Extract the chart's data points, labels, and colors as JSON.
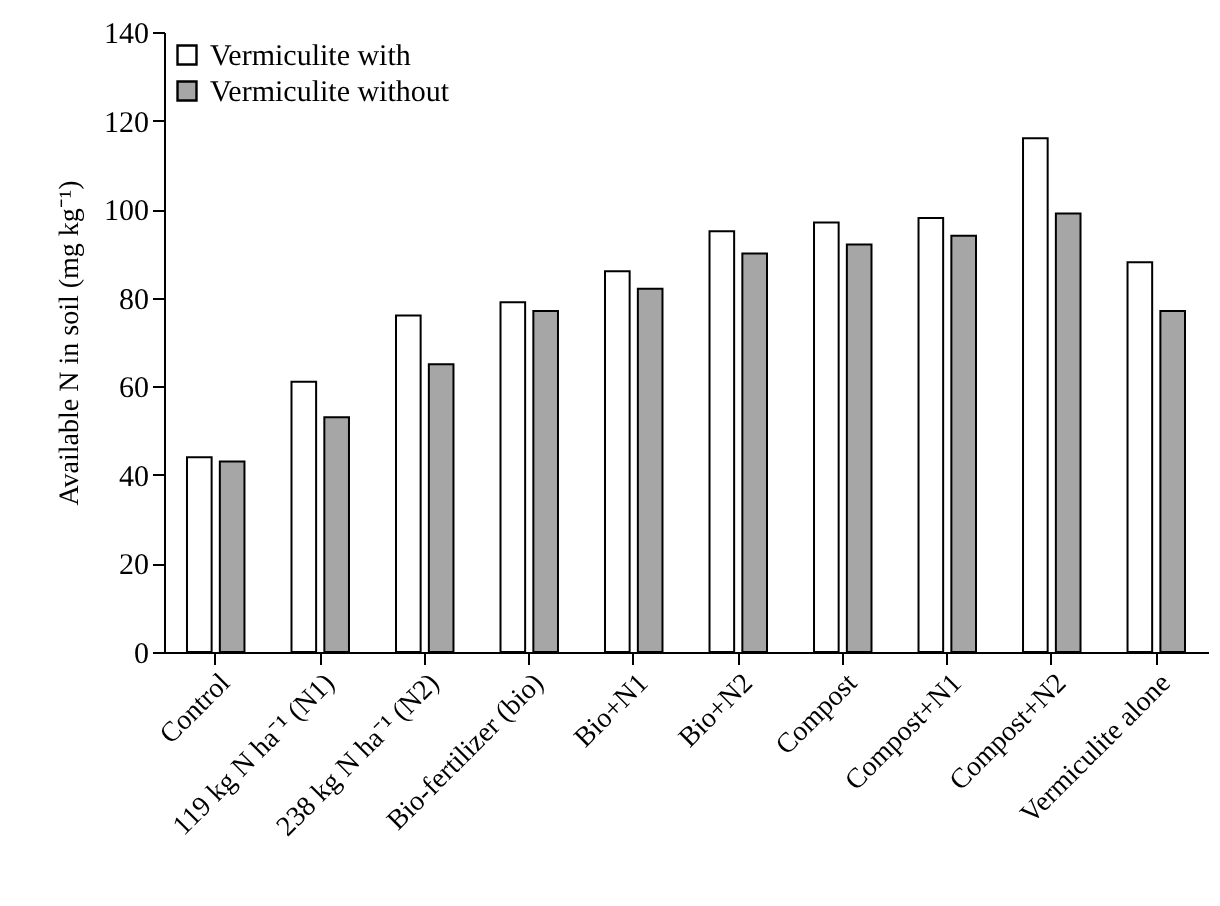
{
  "chart_data": {
    "type": "bar",
    "ylabel": "Available N in soil (mg kg⁻¹)",
    "categories": [
      "Control",
      "119 kg N ha⁻¹ (N1)",
      "238 kg N ha⁻¹ (N2)",
      "Bio-fertilizer (bio)",
      "Bio+N1",
      "Bio+N2",
      "Compost",
      "Compost+N1",
      "Compost+N2",
      "Vermiculite alone"
    ],
    "series": [
      {
        "name": "Vermiculite with",
        "color": "#ffffff",
        "values": [
          44,
          61,
          76,
          79,
          86,
          95,
          97,
          98,
          116,
          88
        ]
      },
      {
        "name": "Vermiculite without",
        "color": "#a6a6a6",
        "values": [
          43,
          53,
          65,
          77,
          82,
          90,
          92,
          94,
          99,
          77
        ]
      }
    ],
    "ylim": [
      0,
      140
    ],
    "yticks": [
      0,
      20,
      40,
      60,
      80,
      100,
      120,
      140
    ],
    "grid": false,
    "legend": "top left"
  }
}
